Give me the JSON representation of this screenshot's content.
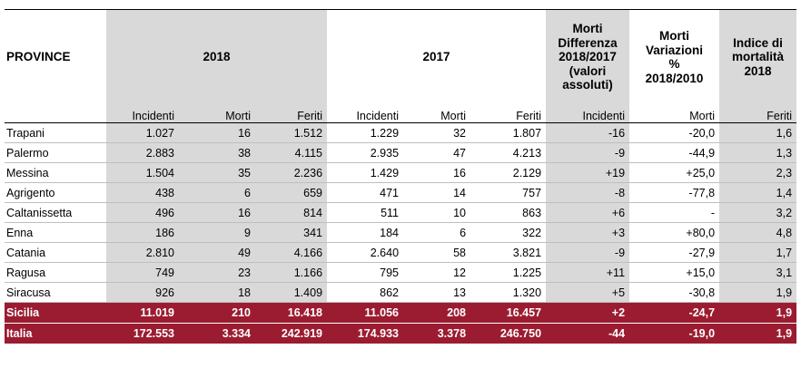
{
  "header": {
    "provinces": "PROVINCE",
    "y2018": "2018",
    "y2017": "2017",
    "morti_diff": [
      "Morti",
      "Differenza",
      "2018/2017",
      "(valori",
      "assoluti)"
    ],
    "morti_var": [
      "Morti",
      "Variazioni",
      "%",
      "2018/2010"
    ],
    "indice": [
      "Indice di",
      "mortalità",
      "2018"
    ]
  },
  "subheader": [
    "Incidenti",
    "Morti",
    "Feriti",
    "Incidenti",
    "Morti",
    "Feriti",
    "Incidenti",
    "Morti",
    "Feriti"
  ],
  "rows": [
    {
      "name": "Trapani",
      "values": [
        "1.027",
        "16",
        "1.512",
        "1.229",
        "32",
        "1.807",
        "-16",
        "-20,0",
        "1,6"
      ]
    },
    {
      "name": "Palermo",
      "values": [
        "2.883",
        "38",
        "4.115",
        "2.935",
        "47",
        "4.213",
        "-9",
        "-44,9",
        "1,3"
      ]
    },
    {
      "name": "Messina",
      "values": [
        "1.504",
        "35",
        "2.236",
        "1.429",
        "16",
        "2.129",
        "+19",
        "+25,0",
        "2,3"
      ]
    },
    {
      "name": "Agrigento",
      "values": [
        "438",
        "6",
        "659",
        "471",
        "14",
        "757",
        "-8",
        "-77,8",
        "1,4"
      ]
    },
    {
      "name": "Caltanissetta",
      "values": [
        "496",
        "16",
        "814",
        "511",
        "10",
        "863",
        "+6",
        "-",
        "3,2"
      ]
    },
    {
      "name": "Enna",
      "values": [
        "186",
        "9",
        "341",
        "184",
        "6",
        "322",
        "+3",
        "+80,0",
        "4,8"
      ]
    },
    {
      "name": "Catania",
      "values": [
        "2.810",
        "49",
        "4.166",
        "2.640",
        "58",
        "3.821",
        "-9",
        "-27,9",
        "1,7"
      ]
    },
    {
      "name": "Ragusa",
      "values": [
        "749",
        "23",
        "1.166",
        "795",
        "12",
        "1.225",
        "+11",
        "+15,0",
        "3,1"
      ]
    },
    {
      "name": "Siracusa",
      "values": [
        "926",
        "18",
        "1.409",
        "862",
        "13",
        "1.320",
        "+5",
        "-30,8",
        "1,9"
      ]
    }
  ],
  "totals": [
    {
      "name": "Sicilia",
      "values": [
        "11.019",
        "210",
        "16.418",
        "11.056",
        "208",
        "16.457",
        "+2",
        "-24,7",
        "1,9"
      ]
    },
    {
      "name": "Italia",
      "values": [
        "172.553",
        "3.334",
        "242.919",
        "174.933",
        "3.378",
        "246.750",
        "-44",
        "-19,0",
        "1,9"
      ]
    }
  ],
  "colors": {
    "shade": "#d9d9d9",
    "total_row": "#9b1c31"
  }
}
